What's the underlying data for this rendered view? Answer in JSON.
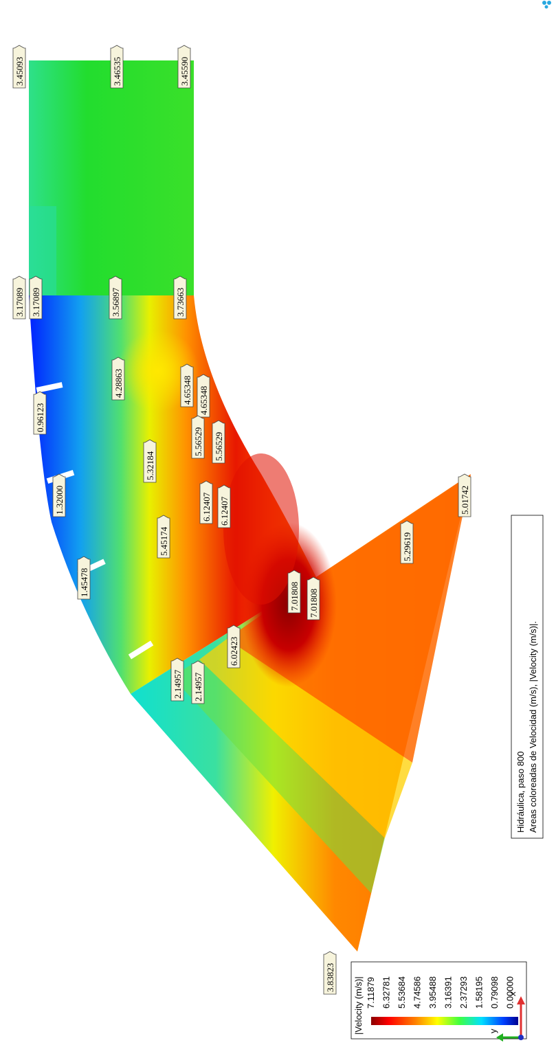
{
  "caption": {
    "line1": "Hidráulica, paso 800",
    "line2": "Areas coloreadas de Velocidad (m/s), |Velocity (m/s)|."
  },
  "legend": {
    "title": "|Velocity (m/s)|",
    "values": [
      "7.11879",
      "6.32781",
      "5.53684",
      "4.74586",
      "3.95488",
      "3.16391",
      "2.37293",
      "1.58195",
      "0.79098",
      "0.00000"
    ]
  },
  "axes": {
    "x_label": "x",
    "y_label": "y"
  },
  "probes": [
    {
      "value": "3.45093"
    },
    {
      "value": "3.46535"
    },
    {
      "value": "3.45590"
    },
    {
      "value": "3.17089"
    },
    {
      "value": "3.17089"
    },
    {
      "value": "3.56897"
    },
    {
      "value": "3.73663"
    },
    {
      "value": "4.28863"
    },
    {
      "value": "4.65348"
    },
    {
      "value": "4.65348"
    },
    {
      "value": "0.96123"
    },
    {
      "value": "5.56529"
    },
    {
      "value": "5.56529"
    },
    {
      "value": "5.32184"
    },
    {
      "value": "1.32000"
    },
    {
      "value": "6.12407"
    },
    {
      "value": "6.12407"
    },
    {
      "value": "5.45174"
    },
    {
      "value": "1.45478"
    },
    {
      "value": "7.01808"
    },
    {
      "value": "7.01808"
    },
    {
      "value": "6.02423"
    },
    {
      "value": "2.14957"
    },
    {
      "value": "2.14957"
    },
    {
      "value": "5.01742"
    },
    {
      "value": "5.29619"
    },
    {
      "value": "3.83823"
    }
  ],
  "colors": {
    "upstream_green": "#22e02a",
    "max_red": "#8a0000",
    "low_blue": "#0018ff"
  }
}
